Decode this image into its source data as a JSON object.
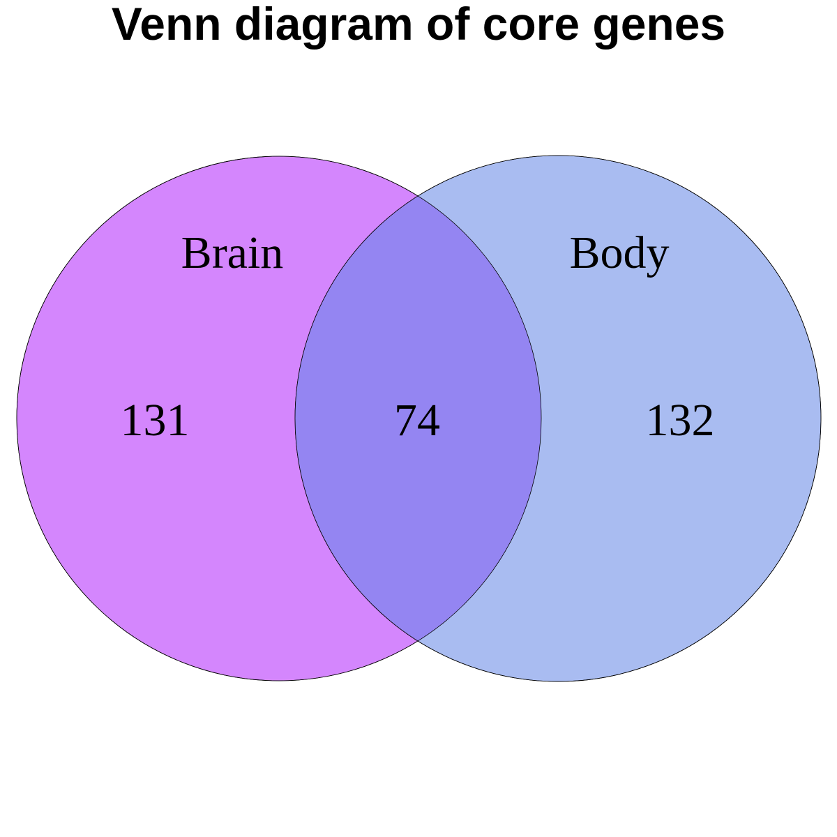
{
  "title": "Venn diagram of core genes",
  "sets": [
    {
      "name": "Brain",
      "only_count": "131",
      "color": "#d486fd"
    },
    {
      "name": "Body",
      "only_count": "132",
      "color": "#a9bcf1"
    }
  ],
  "intersection": {
    "count": "74",
    "color": "#9485f2"
  },
  "outline_color": "#000000"
}
